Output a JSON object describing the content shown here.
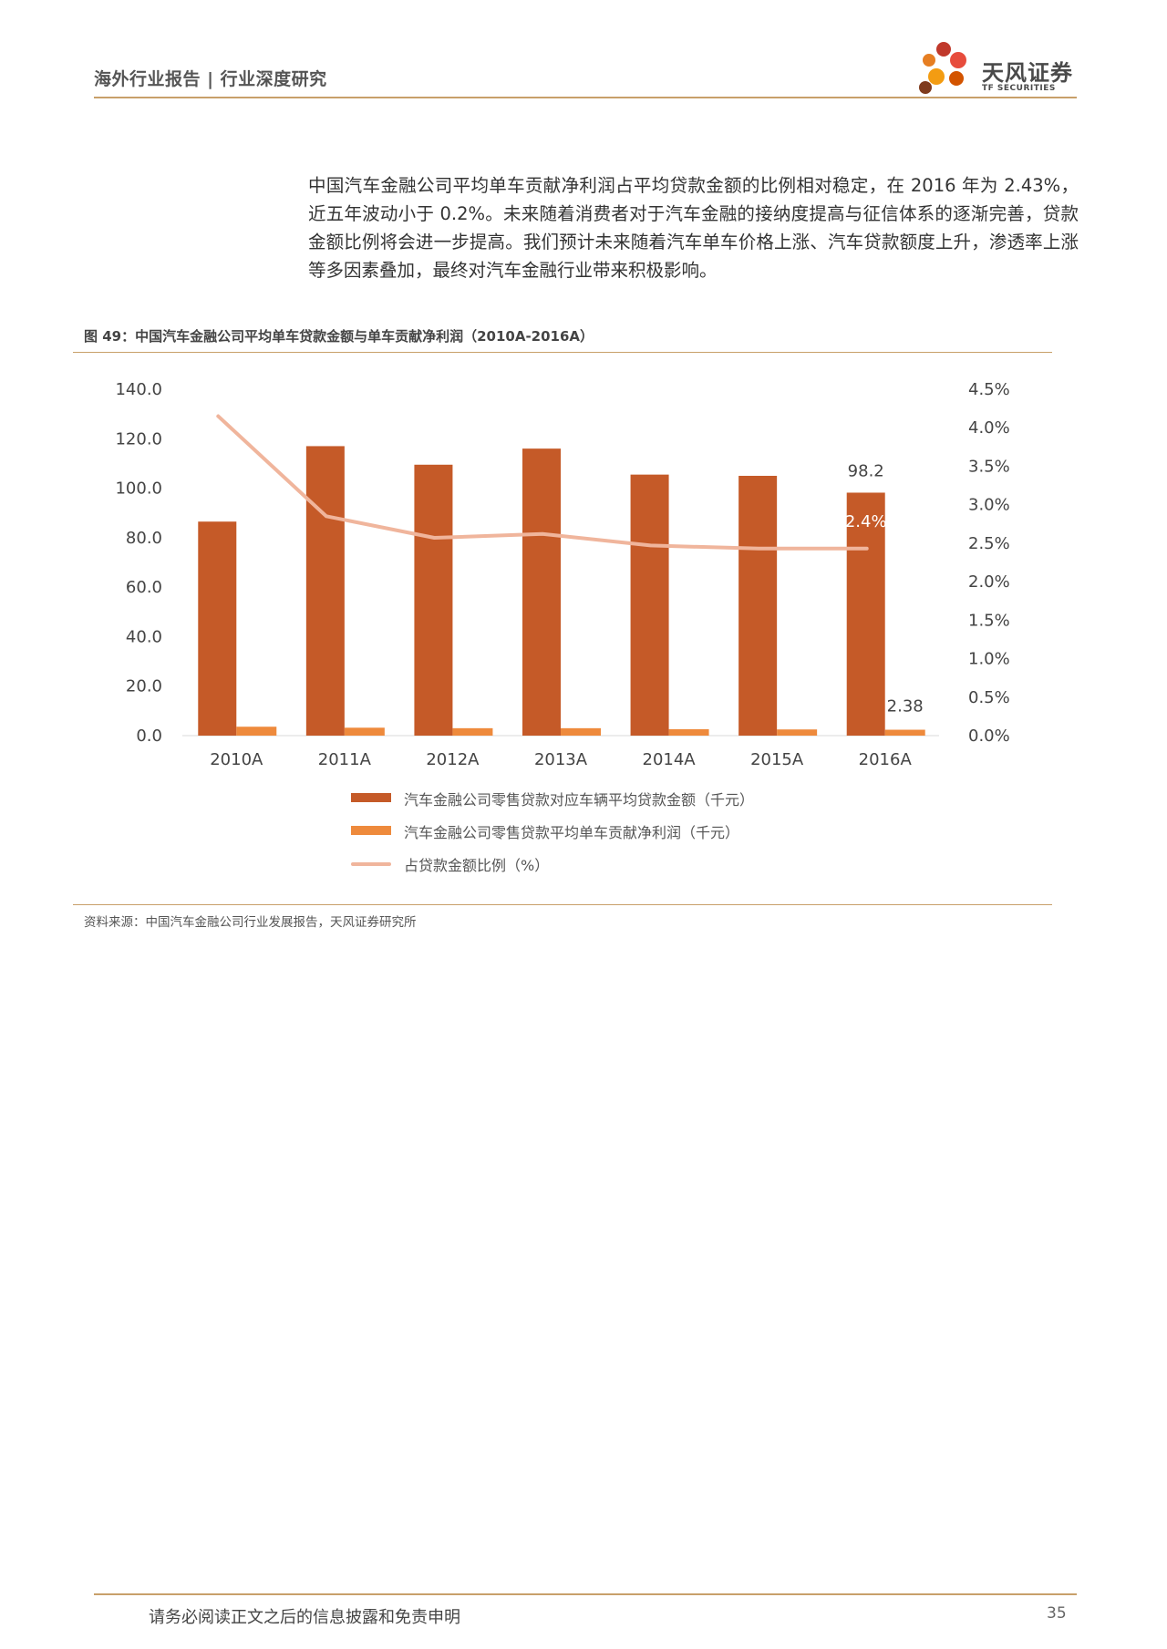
{
  "header": {
    "title": "海外行业报告 | 行业深度研究",
    "logo_cn": "天风证券",
    "logo_en": "TF SECURITIES"
  },
  "body_text": "中国汽车金融公司平均单车贡献净利润占平均贷款金额的比例相对稳定，在 2016 年为 2.43%，近五年波动小于 0.2%。未来随着消费者对于汽车金融的接纳度提高与征信体系的逐渐完善，贷款金额比例将会进一步提高。我们预计未来随着汽车单车价格上涨、汽车贷款额度上升，渗透率上涨等多因素叠加，最终对汽车金融行业带来积极影响。",
  "figure": {
    "title": "图 49：中国汽车金融公司平均单车贷款金额与单车贡献净利润（2010A-2016A）"
  },
  "chart_data": {
    "type": "bar",
    "title": "",
    "categories": [
      "2010A",
      "2011A",
      "2012A",
      "2013A",
      "2014A",
      "2015A",
      "2016A"
    ],
    "series": [
      {
        "name": "汽车金融公司零售贷款对应车辆平均贷款金额（千元）",
        "type": "bar",
        "axis": "left",
        "values": [
          86.5,
          117.0,
          109.5,
          116.0,
          105.5,
          105.0,
          98.2
        ],
        "color": "#c55a28"
      },
      {
        "name": "汽车金融公司零售贷款平均单车贡献净利润（千元）",
        "type": "bar",
        "axis": "left",
        "values": [
          3.6,
          3.2,
          3.0,
          3.0,
          2.6,
          2.5,
          2.38
        ],
        "color": "#ee8a3c"
      },
      {
        "name": "占贷款金额比例（%）",
        "type": "line",
        "axis": "right",
        "values": [
          4.15,
          2.85,
          2.57,
          2.62,
          2.47,
          2.43,
          2.43
        ],
        "color": "#f0b59c"
      }
    ],
    "left_axis": {
      "ylim": [
        0,
        140
      ],
      "ticks": [
        "0.0",
        "20.0",
        "40.0",
        "60.0",
        "80.0",
        "100.0",
        "120.0",
        "140.0"
      ]
    },
    "right_axis": {
      "ylim": [
        0,
        4.5
      ],
      "ticks": [
        "0.0%",
        "0.5%",
        "1.0%",
        "1.5%",
        "2.0%",
        "2.5%",
        "3.0%",
        "3.5%",
        "4.0%",
        "4.5%"
      ]
    },
    "annotations": [
      {
        "text": "98.2",
        "series": 0,
        "index": 6
      },
      {
        "text": "2.4%",
        "series": 2,
        "index": 6
      },
      {
        "text": "2.38",
        "series": 1,
        "index": 6
      }
    ],
    "grid": false,
    "legend_position": "bottom"
  },
  "source": "资料来源：中国汽车金融公司行业发展报告，天风证券研究所",
  "footer": {
    "disclaimer": "请务必阅读正文之后的信息披露和免责申明",
    "page_number": "35"
  }
}
